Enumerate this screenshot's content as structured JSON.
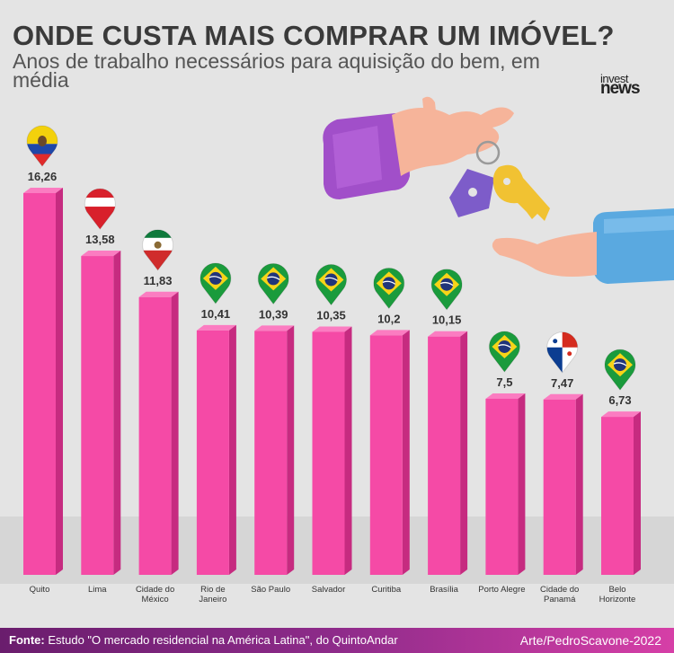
{
  "header": {
    "title": "ONDE CUSTA MAIS COMPRAR UM IMÓVEL?",
    "subtitle": "Anos de trabalho necessários para aquisição do bem, em média",
    "logo_line1": "invest",
    "logo_line2": "news"
  },
  "footer": {
    "source_label": "Fonte:",
    "source_text": " Estudo \"O mercado residencial na América Latina\", do QuintoAndar",
    "credit": "Arte/PedroScavone-2022"
  },
  "colors": {
    "bar_front": "#f54aa6",
    "bar_side": "#c62b80",
    "bar_top": "#fb7cc1",
    "floor": "#d6d6d6"
  },
  "chart_data": {
    "type": "bar",
    "title": "ONDE CUSTA MAIS COMPRAR UM IMÓVEL?",
    "subtitle": "Anos de trabalho necessários para aquisição do bem, em média",
    "categories": [
      "Quito",
      "Lima",
      "Cidade do México",
      "Rio de Janeiro",
      "São Paulo",
      "Salvador",
      "Curitiba",
      "Brasília",
      "Porto Alegre",
      "Cidade do Panamá",
      "Belo Horizonte"
    ],
    "category_lines": [
      [
        "Quito"
      ],
      [
        "Lima"
      ],
      [
        "Cidade do",
        "México"
      ],
      [
        "Rio de",
        "Janeiro"
      ],
      [
        "São Paulo"
      ],
      [
        "Salvador"
      ],
      [
        "Curitiba"
      ],
      [
        "Brasília"
      ],
      [
        "Porto Alegre"
      ],
      [
        "Cidade do",
        "Panamá"
      ],
      [
        "Belo",
        "Horizonte"
      ]
    ],
    "values": [
      16.26,
      13.58,
      11.83,
      10.41,
      10.39,
      10.35,
      10.2,
      10.15,
      7.5,
      7.47,
      6.73
    ],
    "value_labels": [
      "16,26",
      "13,58",
      "11,83",
      "10,41",
      "10,39",
      "10,35",
      "10,2",
      "10,15",
      "7,5",
      "7,47",
      "6,73"
    ],
    "flags": [
      "ecuador",
      "peru",
      "mexico",
      "brazil",
      "brazil",
      "brazil",
      "brazil",
      "brazil",
      "brazil",
      "panama",
      "brazil"
    ],
    "ylim": [
      0,
      16.26
    ],
    "grid": false,
    "legend": "none"
  }
}
